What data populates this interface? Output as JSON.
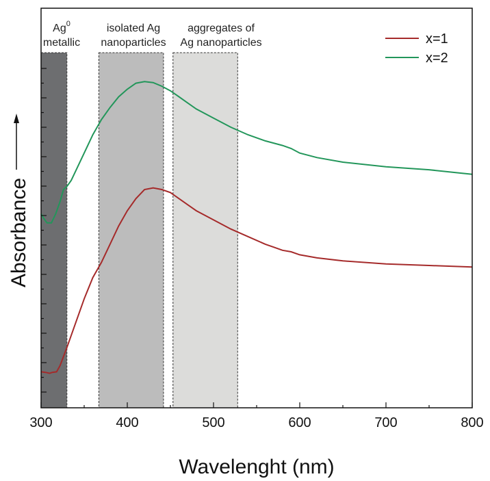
{
  "chart_data": {
    "type": "line",
    "xlabel": "Wavelenght (nm)",
    "ylabel": "Absorbance",
    "xlim": [
      300,
      800
    ],
    "ylim": [
      0,
      1
    ],
    "x_ticks": [
      "300",
      "400",
      "500",
      "600",
      "700",
      "800"
    ],
    "y_tick_labels_shown": false,
    "grid": false,
    "legend_position": "top-right",
    "regions": [
      {
        "name": "ag0-metallic",
        "label_lines": [
          "Ag",
          "metallic"
        ],
        "superscript": "0",
        "x_range": [
          300,
          330
        ],
        "color": "#6d6e70"
      },
      {
        "name": "isolated-ag-nanoparticles",
        "label_lines": [
          "isolated Ag",
          "nanoparticles"
        ],
        "x_range": [
          367,
          442
        ],
        "color": "#bcbcbc"
      },
      {
        "name": "aggregates-of-ag-nanoparticles",
        "label_lines": [
          "aggregates of",
          "Ag nanoparticles"
        ],
        "x_range": [
          453,
          528
        ],
        "color": "#dcdcda"
      }
    ],
    "series": [
      {
        "name": "x=1",
        "color": "#a52a2a",
        "x": [
          300,
          305,
          310,
          313,
          318,
          322,
          330,
          340,
          350,
          360,
          370,
          380,
          390,
          400,
          410,
          420,
          430,
          440,
          450,
          460,
          470,
          480,
          500,
          520,
          540,
          560,
          570,
          580,
          590,
          600,
          620,
          650,
          700,
          750,
          800
        ],
        "y": [
          0.06,
          0.058,
          0.055,
          0.058,
          0.06,
          0.08,
          0.14,
          0.22,
          0.3,
          0.37,
          0.42,
          0.48,
          0.54,
          0.59,
          0.63,
          0.66,
          0.665,
          0.66,
          0.65,
          0.63,
          0.61,
          0.59,
          0.56,
          0.53,
          0.505,
          0.48,
          0.47,
          0.46,
          0.455,
          0.445,
          0.435,
          0.425,
          0.415,
          0.41,
          0.405
        ]
      },
      {
        "name": "x=2",
        "color": "#22965a",
        "x": [
          300,
          303,
          307,
          312,
          317,
          322,
          326,
          330,
          335,
          340,
          350,
          360,
          370,
          380,
          390,
          400,
          410,
          420,
          430,
          440,
          450,
          460,
          470,
          480,
          500,
          520,
          540,
          560,
          580,
          585,
          590,
          600,
          620,
          650,
          700,
          750,
          800
        ],
        "y": [
          0.58,
          0.565,
          0.55,
          0.55,
          0.58,
          0.62,
          0.66,
          0.67,
          0.69,
          0.72,
          0.78,
          0.84,
          0.89,
          0.93,
          0.965,
          0.99,
          1.01,
          1.015,
          1.012,
          1.0,
          0.985,
          0.965,
          0.945,
          0.925,
          0.895,
          0.865,
          0.84,
          0.82,
          0.805,
          0.8,
          0.795,
          0.78,
          0.765,
          0.75,
          0.735,
          0.725,
          0.71
        ]
      }
    ]
  }
}
